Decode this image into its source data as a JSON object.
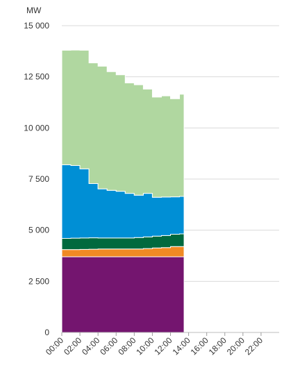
{
  "chart_data": {
    "type": "area",
    "stacked": true,
    "step": true,
    "unit_label": "MW",
    "ylim": [
      0,
      15000
    ],
    "y_ticks": [
      0,
      2500,
      5000,
      7500,
      10000,
      12500,
      15000
    ],
    "y_tick_labels": [
      "0",
      "2 500",
      "5 000",
      "7 500",
      "10 000",
      "12 500",
      "15 000"
    ],
    "xlim": [
      "00:00",
      "24:00"
    ],
    "x_ticks": [
      "00:00",
      "02:00",
      "04:00",
      "06:00",
      "08:00",
      "10:00",
      "12:00",
      "14:00",
      "16:00",
      "18:00",
      "20:00",
      "22:00"
    ],
    "grid": true,
    "legend": "none",
    "x": [
      "00:00",
      "01:00",
      "02:00",
      "03:00",
      "04:00",
      "05:00",
      "06:00",
      "07:00",
      "08:00",
      "09:00",
      "10:00",
      "11:00",
      "12:00",
      "13:00",
      "13:30"
    ],
    "series": [
      {
        "color": "#74156f",
        "values": [
          3700,
          3700,
          3700,
          3700,
          3700,
          3700,
          3700,
          3700,
          3700,
          3700,
          3700,
          3700,
          3700,
          3700,
          3700
        ]
      },
      {
        "color": "#f08a24",
        "values": [
          350,
          350,
          360,
          370,
          380,
          380,
          380,
          380,
          380,
          400,
          430,
          450,
          500,
          500,
          500
        ]
      },
      {
        "color": "#00693e",
        "values": [
          550,
          560,
          560,
          560,
          540,
          540,
          540,
          540,
          560,
          570,
          580,
          590,
          600,
          620,
          620
        ]
      },
      {
        "color": "#008fd5",
        "values": [
          3600,
          3550,
          3380,
          2650,
          2400,
          2330,
          2280,
          2180,
          2070,
          2130,
          1900,
          1880,
          1830,
          1830,
          1800
        ]
      },
      {
        "color": "#b0d7a0",
        "values": [
          5600,
          5650,
          5800,
          5900,
          6000,
          5800,
          5700,
          5400,
          5400,
          5100,
          4900,
          4950,
          4800,
          5000,
          5400
        ]
      }
    ]
  }
}
